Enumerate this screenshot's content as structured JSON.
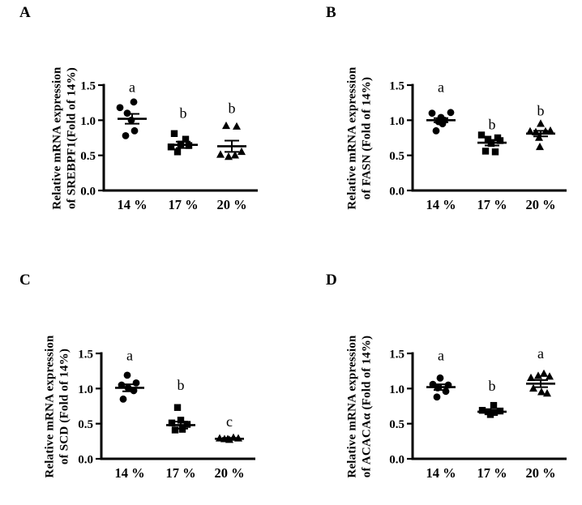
{
  "colors": {
    "ink": "#000000",
    "background": "#ffffff"
  },
  "chart_data": {
    "type": "scatter",
    "subtype": "dot-plot-with-mean-sem",
    "description": "Four scatter dot plots (A-D) of relative mRNA expression at three dietary levels; individual replicate points with mean and SEM error bars; letters a/b/c mark significance groups.",
    "x_categories": [
      "14 %",
      "17 %",
      "20 %"
    ],
    "yticks": [
      "0.0",
      "0.5",
      "1.0",
      "1.5"
    ],
    "ylim": [
      0,
      1.5
    ],
    "grid": false,
    "legend": false,
    "panels": [
      {
        "letter": "A",
        "ylabel_line1": "Relative mRNA expression",
        "ylabel_line2": "of SREBPF1(Fold of 14%)",
        "groups": [
          {
            "category": "14 %",
            "marker": "circle",
            "sig": "a",
            "sig_y": 1.4,
            "mean": 1.02,
            "sem": 0.07,
            "points": [
              [
                -15,
                1.18
              ],
              [
                2,
                1.26
              ],
              [
                -6,
                1.1
              ],
              [
                -1,
                1.0
              ],
              [
                3,
                0.85
              ],
              [
                -8,
                0.78
              ]
            ]
          },
          {
            "category": "17 %",
            "marker": "square",
            "sig": "b",
            "sig_y": 1.03,
            "mean": 0.65,
            "sem": 0.045,
            "points": [
              [
                -11,
                0.81
              ],
              [
                3,
                0.73
              ],
              [
                -15,
                0.62
              ],
              [
                7,
                0.64
              ],
              [
                -3,
                0.66
              ],
              [
                -7,
                0.55
              ]
            ]
          },
          {
            "category": "20 %",
            "marker": "triangle",
            "sig": "b",
            "sig_y": 1.1,
            "mean": 0.63,
            "sem": 0.08,
            "points": [
              [
                -7,
                0.92
              ],
              [
                6,
                0.91
              ],
              [
                -14,
                0.51
              ],
              [
                -4,
                0.48
              ],
              [
                4,
                0.5
              ],
              [
                12,
                0.55
              ]
            ]
          }
        ]
      },
      {
        "letter": "B",
        "ylabel_line1": "Relative mRNA expression",
        "ylabel_line2": "of FASN (Fold of 14%)",
        "groups": [
          {
            "category": "14 %",
            "marker": "circle",
            "sig": "a",
            "sig_y": 1.4,
            "mean": 1.0,
            "sem": 0.03,
            "points": [
              [
                -11,
                1.1
              ],
              [
                12,
                1.11
              ],
              [
                0,
                1.04
              ],
              [
                4,
                1.0
              ],
              [
                -3,
                0.98
              ],
              [
                -6,
                0.85
              ],
              [
                2,
                0.95
              ]
            ]
          },
          {
            "category": "17 %",
            "marker": "square",
            "sig": "b",
            "sig_y": 0.87,
            "mean": 0.68,
            "sem": 0.04,
            "points": [
              [
                -13,
                0.79
              ],
              [
                -5,
                0.73
              ],
              [
                7,
                0.75
              ],
              [
                10,
                0.71
              ],
              [
                -1,
                0.67
              ],
              [
                -8,
                0.56
              ],
              [
                4,
                0.55
              ]
            ]
          },
          {
            "category": "20 %",
            "marker": "triangle",
            "sig": "b",
            "sig_y": 1.07,
            "mean": 0.81,
            "sem": 0.04,
            "points": [
              [
                -13,
                0.84
              ],
              [
                -6,
                0.83
              ],
              [
                0,
                0.95
              ],
              [
                6,
                0.84
              ],
              [
                12,
                0.85
              ],
              [
                -2,
                0.75
              ],
              [
                -1,
                0.62
              ]
            ]
          }
        ]
      },
      {
        "letter": "C",
        "ylabel_line1": "Relative mRNA expression",
        "ylabel_line2": "of SCD (Fold of 14%)",
        "groups": [
          {
            "category": "14 %",
            "marker": "circle",
            "sig": "a",
            "sig_y": 1.4,
            "mean": 1.01,
            "sem": 0.05,
            "points": [
              [
                -3,
                1.19
              ],
              [
                8,
                1.08
              ],
              [
                -10,
                1.05
              ],
              [
                5,
                0.97
              ],
              [
                -8,
                0.85
              ],
              [
                -2,
                1.01
              ]
            ]
          },
          {
            "category": "17 %",
            "marker": "square",
            "sig": "b",
            "sig_y": 0.98,
            "mean": 0.48,
            "sem": 0.05,
            "points": [
              [
                -4,
                0.73
              ],
              [
                -11,
                0.51
              ],
              [
                0,
                0.55
              ],
              [
                8,
                0.49
              ],
              [
                -7,
                0.41
              ],
              [
                2,
                0.42
              ]
            ]
          },
          {
            "category": "20 %",
            "marker": "triangle",
            "sig": "c",
            "sig_y": 0.46,
            "mean": 0.285,
            "sem": 0.012,
            "points": [
              [
                -12,
                0.29
              ],
              [
                -6,
                0.28
              ],
              [
                0,
                0.27
              ],
              [
                5,
                0.3
              ],
              [
                11,
                0.29
              ],
              [
                -2,
                0.28
              ]
            ]
          }
        ]
      },
      {
        "letter": "D",
        "ylabel_line1": "Relative mRNA expression",
        "ylabel_line2": "of ACACAα (Fold of 14%)",
        "groups": [
          {
            "category": "14 %",
            "marker": "circle",
            "sig": "a",
            "sig_y": 1.4,
            "mean": 1.02,
            "sem": 0.04,
            "points": [
              [
                -1,
                1.15
              ],
              [
                -10,
                1.06
              ],
              [
                9,
                1.05
              ],
              [
                -4,
                1.01
              ],
              [
                6,
                0.96
              ],
              [
                -5,
                0.88
              ]
            ]
          },
          {
            "category": "17 %",
            "marker": "square",
            "sig": "b",
            "sig_y": 0.97,
            "mean": 0.67,
            "sem": 0.02,
            "points": [
              [
                2,
                0.76
              ],
              [
                -12,
                0.69
              ],
              [
                -5,
                0.67
              ],
              [
                3,
                0.66
              ],
              [
                10,
                0.68
              ],
              [
                -2,
                0.63
              ]
            ]
          },
          {
            "category": "20 %",
            "marker": "triangle",
            "sig": "a",
            "sig_y": 1.43,
            "mean": 1.07,
            "sem": 0.05,
            "points": [
              [
                -12,
                1.15
              ],
              [
                -3,
                1.18
              ],
              [
                4,
                1.21
              ],
              [
                11,
                1.17
              ],
              [
                -9,
                1.0
              ],
              [
                1,
                0.95
              ],
              [
                8,
                0.93
              ]
            ]
          }
        ]
      }
    ]
  }
}
